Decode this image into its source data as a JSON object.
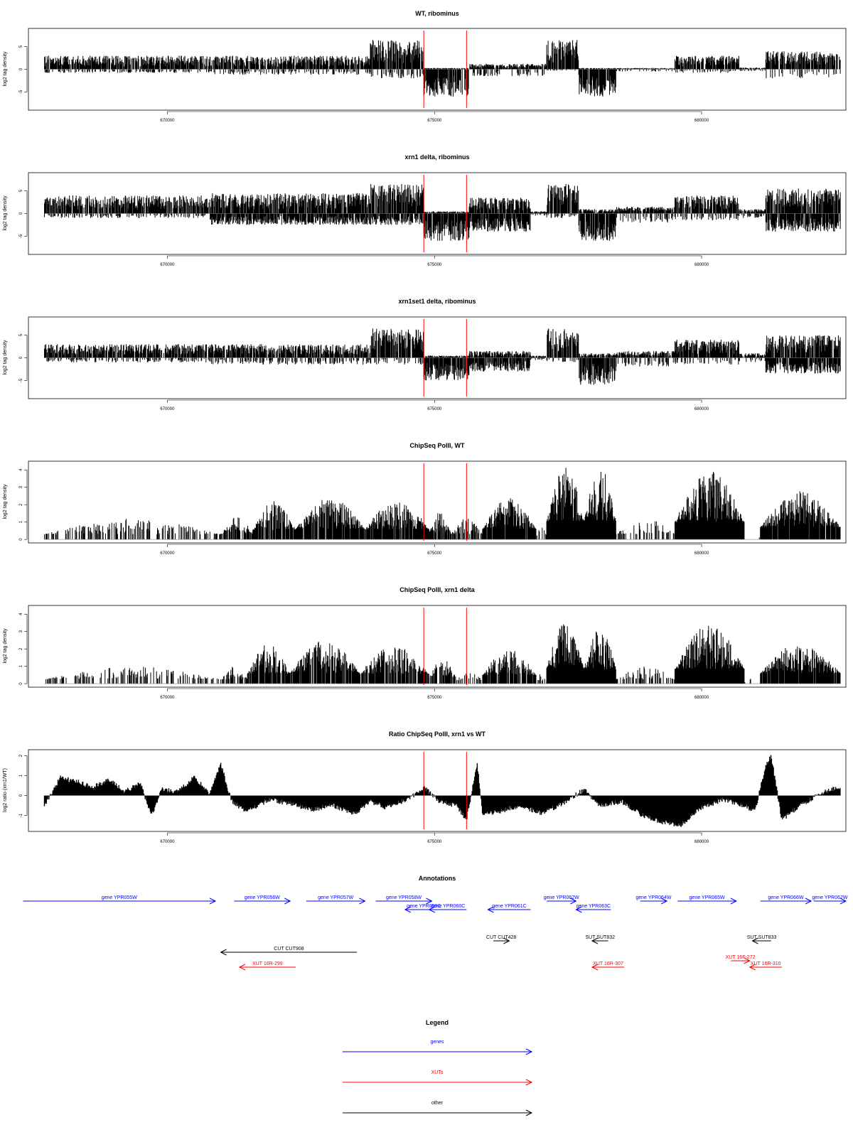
{
  "colors": {
    "gene": "#0000ff",
    "xut": "#ff0000",
    "other": "#000000",
    "marker": "#ff0000",
    "bars": "#000000"
  },
  "chart_data": [
    {
      "type": "bar",
      "title": "WT, ribominus",
      "xlabel": "",
      "ylabel": "log2 tag density",
      "xlim": [
        667400,
        682700
      ],
      "ylim": [
        -9,
        9
      ],
      "yticks": [
        -5,
        0,
        5
      ],
      "xticks": [
        670000,
        675000,
        680000
      ],
      "xtick_labels": [
        "670000",
        "675000",
        "680000"
      ],
      "markers": [
        674800,
        675600
      ],
      "style": "strand",
      "regions": [
        [
          667700,
          670800,
          3,
          -0.8
        ],
        [
          670800,
          673800,
          3,
          -1.2
        ],
        [
          673800,
          674800,
          6.5,
          -2
        ],
        [
          674800,
          675650,
          0.3,
          -6
        ],
        [
          675650,
          677100,
          1.2,
          -1.5
        ],
        [
          677100,
          677700,
          6.5,
          -0.3
        ],
        [
          677700,
          678400,
          0.3,
          -6
        ],
        [
          678400,
          679500,
          0.3,
          -0.5
        ],
        [
          679500,
          680700,
          3,
          -0.8
        ],
        [
          680700,
          681200,
          0.4,
          -0.4
        ],
        [
          681200,
          682600,
          4,
          -2
        ]
      ]
    },
    {
      "type": "bar",
      "title": "xrn1 delta, ribominus",
      "xlabel": "",
      "ylabel": "log2 tag density",
      "xlim": [
        667400,
        682700
      ],
      "ylim": [
        -9,
        9
      ],
      "yticks": [
        -5,
        0,
        5
      ],
      "xticks": [
        670000,
        675000,
        680000
      ],
      "xtick_labels": [
        "670000",
        "675000",
        "680000"
      ],
      "markers": [
        674800,
        675600
      ],
      "style": "strand",
      "regions": [
        [
          667700,
          670800,
          4,
          -1
        ],
        [
          670800,
          673800,
          4.5,
          -2.5
        ],
        [
          673800,
          674800,
          6.5,
          -2.5
        ],
        [
          674800,
          675650,
          0.5,
          -6
        ],
        [
          675650,
          676800,
          3.5,
          -4
        ],
        [
          676800,
          677100,
          0.5,
          -0.5
        ],
        [
          677100,
          677700,
          6.5,
          -1
        ],
        [
          677700,
          678400,
          1,
          -6
        ],
        [
          678400,
          679500,
          1.5,
          -2
        ],
        [
          679500,
          680700,
          4,
          -1.5
        ],
        [
          680700,
          681200,
          1,
          -1
        ],
        [
          681200,
          682600,
          5.5,
          -4
        ]
      ]
    },
    {
      "type": "bar",
      "title": "xrn1set1 delta, ribominus",
      "xlabel": "",
      "ylabel": "log2 tag density",
      "xlim": [
        667400,
        682700
      ],
      "ylim": [
        -9,
        9
      ],
      "yticks": [
        -5,
        0,
        5
      ],
      "xticks": [
        670000,
        675000,
        680000
      ],
      "xtick_labels": [
        "670000",
        "675000",
        "680000"
      ],
      "markers": [
        674800,
        675600
      ],
      "style": "strand",
      "regions": [
        [
          667700,
          670800,
          3,
          -1
        ],
        [
          670800,
          673800,
          3,
          -1.5
        ],
        [
          673800,
          674800,
          6.5,
          -1.5
        ],
        [
          674800,
          675650,
          0.5,
          -5
        ],
        [
          675650,
          676800,
          1.5,
          -3
        ],
        [
          676800,
          677100,
          0.5,
          -0.5
        ],
        [
          677100,
          677700,
          6.5,
          -1
        ],
        [
          677700,
          678400,
          1,
          -6
        ],
        [
          678400,
          679500,
          1.5,
          -2
        ],
        [
          679500,
          680700,
          4,
          -1.5
        ],
        [
          680700,
          681200,
          1,
          -1
        ],
        [
          681200,
          682600,
          5,
          -3.5
        ]
      ]
    },
    {
      "type": "bar",
      "title": "ChipSeq PolII, WT",
      "xlabel": "",
      "ylabel": "log2 tag density",
      "xlim": [
        667400,
        682700
      ],
      "ylim": [
        -0.2,
        4.5
      ],
      "yticks": [
        0,
        1,
        2,
        3,
        4
      ],
      "xticks": [
        670000,
        675000,
        680000
      ],
      "xtick_labels": [
        "670000",
        "675000",
        "680000"
      ],
      "markers": [
        674800,
        675600
      ],
      "style": "density",
      "regions": [
        [
          667700,
          671000,
          1.2,
          0.35
        ],
        [
          671000,
          671600,
          1.3,
          0.8
        ],
        [
          671600,
          672400,
          2.2,
          0.85
        ],
        [
          672400,
          673700,
          2.4,
          0.9
        ],
        [
          673700,
          674900,
          2.3,
          0.9
        ],
        [
          674900,
          675300,
          1.6,
          0.85
        ],
        [
          675300,
          675900,
          1.2,
          0.5
        ],
        [
          675900,
          676900,
          2.4,
          0.95
        ],
        [
          676900,
          677100,
          0.8,
          0.3
        ],
        [
          677100,
          677800,
          4.2,
          1
        ],
        [
          677800,
          678400,
          4.2,
          1
        ],
        [
          678400,
          679500,
          1.2,
          0.4
        ],
        [
          679500,
          680800,
          4.0,
          1
        ],
        [
          680800,
          681100,
          0.3,
          0.1
        ],
        [
          681100,
          682600,
          2.8,
          0.95
        ]
      ]
    },
    {
      "type": "bar",
      "title": "ChipSeq PolII, xrn1 delta",
      "xlabel": "",
      "ylabel": "log2 tag density",
      "xlim": [
        667400,
        682700
      ],
      "ylim": [
        -0.2,
        4.5
      ],
      "yticks": [
        0,
        1,
        2,
        3,
        4
      ],
      "xticks": [
        670000,
        675000,
        680000
      ],
      "xtick_labels": [
        "670000",
        "675000",
        "680000"
      ],
      "markers": [
        674800,
        675600
      ],
      "style": "density",
      "regions": [
        [
          667700,
          671000,
          1.0,
          0.3
        ],
        [
          671000,
          671500,
          1.0,
          0.5
        ],
        [
          671500,
          672300,
          2.3,
          0.85
        ],
        [
          672300,
          673600,
          2.5,
          0.85
        ],
        [
          673600,
          674900,
          2.2,
          0.85
        ],
        [
          674900,
          675400,
          1.5,
          0.7
        ],
        [
          675400,
          675900,
          0.8,
          0.3
        ],
        [
          675900,
          676900,
          2.0,
          0.8
        ],
        [
          676900,
          677100,
          0.6,
          0.3
        ],
        [
          677100,
          677800,
          3.6,
          1
        ],
        [
          677800,
          678400,
          3.3,
          1
        ],
        [
          678400,
          679500,
          1.0,
          0.4
        ],
        [
          679500,
          680800,
          3.4,
          1
        ],
        [
          680800,
          681100,
          0.3,
          0.1
        ],
        [
          681100,
          682600,
          2.4,
          0.95
        ]
      ]
    },
    {
      "type": "area",
      "title": "Ratio ChipSeq PolII, xrn1 vs WT",
      "xlabel": "",
      "ylabel": "log2 ratio (xrn1/WT)",
      "xlim": [
        667400,
        682700
      ],
      "ylim": [
        -1.8,
        2.3
      ],
      "yticks": [
        -1,
        0,
        1,
        2
      ],
      "xticks": [
        670000,
        675000,
        680000
      ],
      "xtick_labels": [
        "670000",
        "675000",
        "680000"
      ],
      "markers": [
        674800,
        675600
      ],
      "series": [
        {
          "x": [
            667700,
            668000,
            668300,
            668600,
            668900,
            669200,
            669500,
            669700,
            669900,
            670200,
            670500,
            670800,
            671000,
            671200,
            671500,
            671900,
            672300,
            672700,
            673100,
            673500,
            673800,
            674100,
            674500,
            674800,
            675100,
            675400,
            675600,
            675800,
            675900,
            676200,
            676600,
            677000,
            677400,
            677800,
            678100,
            678500,
            678900,
            679200,
            679600,
            680000,
            680400,
            680800,
            681000,
            681200,
            681300,
            681500,
            681900,
            682300,
            682600
          ],
          "y": [
            -0.5,
            0.9,
            0.7,
            0.4,
            0.8,
            0.2,
            0.6,
            -1.0,
            0.3,
            0.2,
            0.9,
            0.1,
            1.6,
            -0.3,
            -0.8,
            -0.2,
            -0.4,
            -0.7,
            -0.5,
            -0.9,
            -0.3,
            -0.6,
            -0.2,
            0.4,
            -0.3,
            -0.5,
            -1.2,
            1.6,
            -1.0,
            -0.8,
            -0.5,
            -0.9,
            -0.4,
            0.3,
            -0.5,
            -0.3,
            -1.0,
            -1.3,
            -1.5,
            -0.6,
            -0.2,
            -0.5,
            -0.8,
            1.5,
            2.0,
            -1.2,
            -0.4,
            0.2,
            0.4
          ]
        }
      ]
    }
  ],
  "annotations": {
    "title": "Annotations",
    "items": [
      {
        "label": "gene YPR055W",
        "type": "gene",
        "start": 667300,
        "end": 670900,
        "row": 0
      },
      {
        "label": "gene YPR056W",
        "type": "gene",
        "start": 671250,
        "end": 672300,
        "row": 0
      },
      {
        "label": "gene YPR057W",
        "type": "gene",
        "start": 672600,
        "end": 673700,
        "row": 0
      },
      {
        "label": "gene YPR058W",
        "type": "gene",
        "start": 673900,
        "end": 674950,
        "row": 0
      },
      {
        "label": "gene YPR059C",
        "type": "gene",
        "start": 675150,
        "end": 674450,
        "row": 1
      },
      {
        "label": "gene YPR060C",
        "type": "gene",
        "start": 675600,
        "end": 674900,
        "row": 1
      },
      {
        "label": "gene YPR061C",
        "type": "gene",
        "start": 676800,
        "end": 676000,
        "row": 1
      },
      {
        "label": "gene YPR062W",
        "type": "gene",
        "start": 677100,
        "end": 677650,
        "row": 0
      },
      {
        "label": "gene YPR063C",
        "type": "gene",
        "start": 678300,
        "end": 677650,
        "row": 1
      },
      {
        "label": "gene YPR064W",
        "type": "gene",
        "start": 678850,
        "end": 679350,
        "row": 0
      },
      {
        "label": "gene YPR065W",
        "type": "gene",
        "start": 679550,
        "end": 680650,
        "row": 0
      },
      {
        "label": "gene YPR066W",
        "type": "gene",
        "start": 681100,
        "end": 682050,
        "row": 0
      },
      {
        "label": "gene YPR067W",
        "type": "gene",
        "start": 682100,
        "end": 682700,
        "row": 0
      },
      {
        "label": "CUT CUT908",
        "type": "other",
        "start": 673550,
        "end": 671000,
        "row": 3
      },
      {
        "label": "CUT CUT428",
        "type": "other",
        "start": 676100,
        "end": 676400,
        "row": 2
      },
      {
        "label": "SUT SUT832",
        "type": "other",
        "start": 678250,
        "end": 677950,
        "row": 2
      },
      {
        "label": "SUT SUT833",
        "type": "other",
        "start": 681300,
        "end": 680950,
        "row": 2
      },
      {
        "label": "XUT 16R-299",
        "type": "xut",
        "start": 672400,
        "end": 671350,
        "row": 4
      },
      {
        "label": "XUT 16R-307",
        "type": "xut",
        "start": 678550,
        "end": 677950,
        "row": 4
      },
      {
        "label": "XUT 16F-272",
        "type": "xut",
        "start": 680550,
        "end": 680900,
        "row": 5
      },
      {
        "label": "XUT 16R-310",
        "type": "xut",
        "start": 681500,
        "end": 680900,
        "row": 4
      }
    ]
  },
  "legend": {
    "title": "Legend",
    "items": [
      {
        "label": "genes",
        "type": "gene"
      },
      {
        "label": "XUTs",
        "type": "xut"
      },
      {
        "label": "other",
        "type": "other"
      }
    ]
  }
}
